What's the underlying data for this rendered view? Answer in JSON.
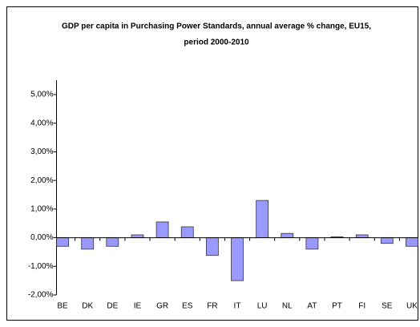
{
  "chart_data": {
    "type": "bar",
    "title": [
      "GDP per capita in Purchasing Power Standards, annual average % change, EU15,",
      "period 2000-2010"
    ],
    "categories": [
      "BE",
      "DK",
      "DE",
      "IE",
      "GR",
      "ES",
      "FR",
      "IT",
      "LU",
      "NL",
      "AT",
      "PT",
      "FI",
      "SE",
      "UK"
    ],
    "values": [
      -0.3,
      -0.4,
      -0.3,
      0.1,
      0.55,
      0.38,
      -0.62,
      -1.5,
      1.3,
      0.15,
      -0.4,
      0.03,
      0.1,
      -0.2,
      -0.3
    ],
    "color": "#9999ff",
    "ylim": [
      -2,
      5
    ],
    "yticks": [
      {
        "value": -2,
        "label": "-2,00%"
      },
      {
        "value": -1,
        "label": "-1,00%"
      },
      {
        "value": 0,
        "label": "0,00%"
      },
      {
        "value": 1,
        "label": "1,00%"
      },
      {
        "value": 2,
        "label": "2,00%"
      },
      {
        "value": 3,
        "label": "3,00%"
      },
      {
        "value": 4,
        "label": "4,00%"
      },
      {
        "value": 5,
        "label": "5,00%"
      }
    ],
    "grid": false
  }
}
